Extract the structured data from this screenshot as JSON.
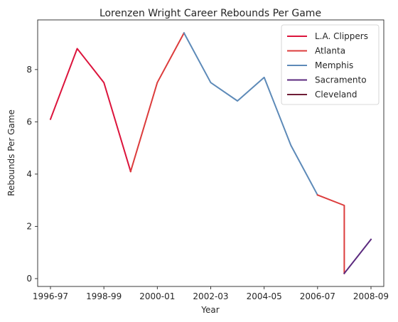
{
  "chart_data": {
    "type": "line",
    "title": "Lorenzen Wright Career Rebounds Per Game",
    "xlabel": "Year",
    "ylabel": "Rebounds Per Game",
    "x_tick_labels": [
      "1996-97",
      "1998-99",
      "2000-01",
      "2002-03",
      "2004-05",
      "2006-07",
      "2008-09"
    ],
    "x_range": [
      0,
      12
    ],
    "y_ticks": [
      0,
      2,
      4,
      6,
      8
    ],
    "ylim": [
      -0.3,
      9.9
    ],
    "grid": false,
    "legend_position": "top-right",
    "series": [
      {
        "name": "L.A. Clippers",
        "color": "#dc143c",
        "x": [
          0,
          1,
          2,
          3
        ],
        "y": [
          6.1,
          8.8,
          7.5,
          4.1
        ]
      },
      {
        "name": "Atlanta",
        "color": "#dc3c3c",
        "x": [
          3,
          4,
          5
        ],
        "y": [
          4.1,
          7.5,
          9.4
        ]
      },
      {
        "name": "Memphis",
        "color": "#5d8ab8",
        "x": [
          5,
          6,
          7,
          8,
          9,
          10
        ],
        "y": [
          9.4,
          7.5,
          6.8,
          7.7,
          5.1,
          3.2
        ]
      },
      {
        "name": "Atlanta",
        "color": "#dc3c3c",
        "legend": false,
        "x": [
          10,
          11,
          11
        ],
        "y": [
          3.2,
          2.8,
          0.2
        ]
      },
      {
        "name": "Sacramento",
        "color": "#5b2a7e",
        "x": [
          11,
          12
        ],
        "y": [
          0.2,
          1.5
        ]
      },
      {
        "name": "Cleveland",
        "color": "#6f1d36",
        "x": [],
        "y": []
      }
    ]
  }
}
